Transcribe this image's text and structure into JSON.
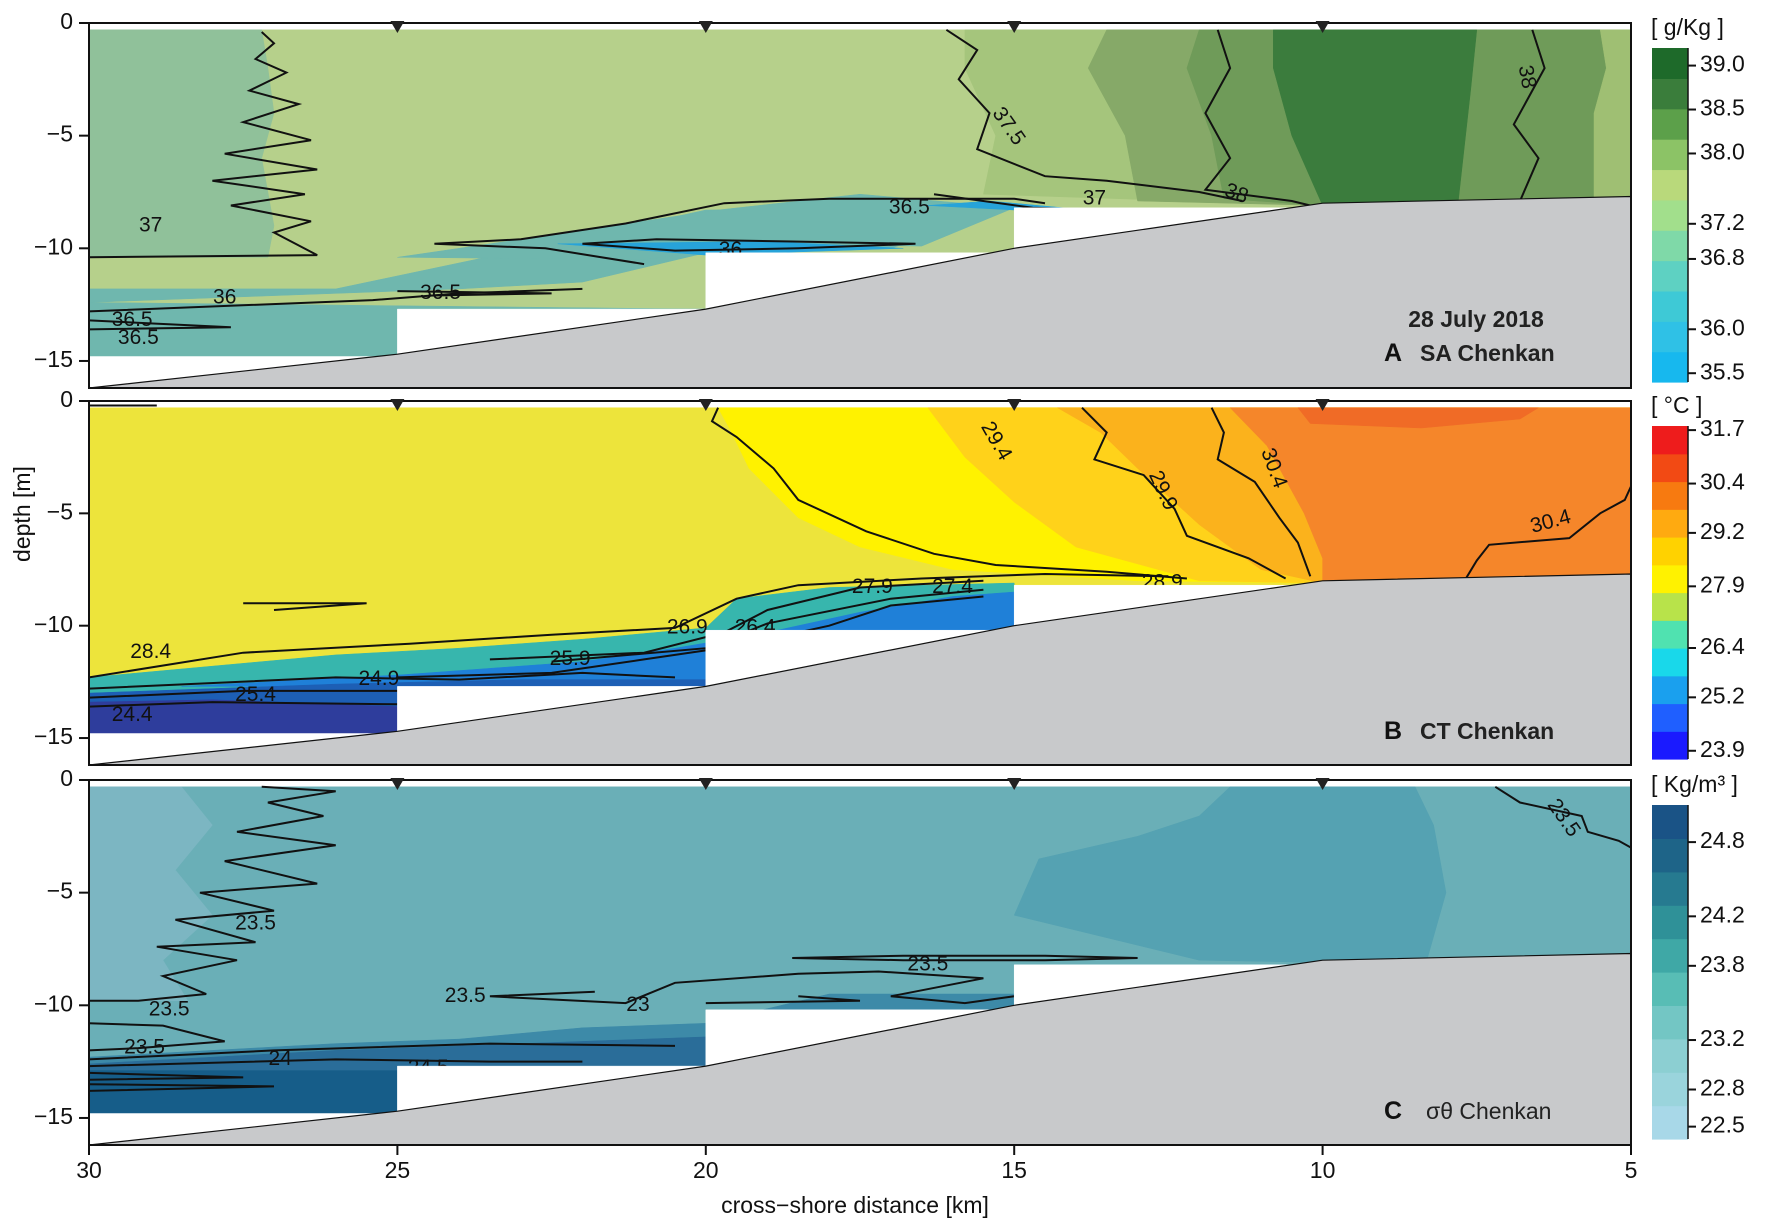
{
  "figure": {
    "date": "28 July 2018",
    "xlabel": "cross−shore distance [km]",
    "ylabel": "depth [m]"
  },
  "chart_data": [
    {
      "type": "heatmap",
      "panel_letter": "A",
      "title": "SA Chenkan",
      "xlim": [
        30,
        5
      ],
      "ylim": [
        -16.2,
        0
      ],
      "x_ticks": [
        "30",
        "25",
        "20",
        "15",
        "10",
        "5"
      ],
      "y_ticks": [
        "0",
        "−5",
        "−10",
        "−15"
      ],
      "colorbar": {
        "title": "[ g/Kg ]",
        "range": [
          35.4,
          39.2
        ],
        "ticks": [
          "39.0",
          "38.5",
          "38.0",
          "37.2",
          "36.8",
          "36.0",
          "35.5"
        ],
        "colors": [
          "#17b8ee",
          "#2fc1e6",
          "#3ec9d6",
          "#5ed1c2",
          "#7fd9a8",
          "#a2df8c",
          "#b9d97b",
          "#8cc366",
          "#5ca04a",
          "#3a7d3b",
          "#1e6a2a"
        ]
      },
      "stations_km": [
        25,
        20,
        15,
        10
      ],
      "contour_labels": [
        "37",
        "36",
        "36.5",
        "36.5",
        "36.5",
        "36",
        "36.5",
        "37",
        "37.5",
        "38",
        "38"
      ],
      "region_colors": {
        "nearshore_band1": "#a5c57c",
        "nearshore_band2": "#86a968",
        "nearshore_band3": "#4f8a48",
        "nearshore_core": "#3b7c3d",
        "nearshore_band5": "#6f9b59",
        "nearshore_band6": "#9fbf73",
        "mid": "#b6d08b",
        "offshore_left": "#90c19a",
        "deep_layer": "#6fb7ae",
        "low_core": "#27a3d9"
      }
    },
    {
      "type": "heatmap",
      "panel_letter": "B",
      "title": "CT Chenkan",
      "xlim": [
        30,
        5
      ],
      "ylim": [
        -16.2,
        0
      ],
      "x_ticks": [
        "30",
        "25",
        "20",
        "15",
        "10",
        "5"
      ],
      "y_ticks": [
        "0",
        "−5",
        "−10",
        "−15"
      ],
      "colorbar": {
        "title": "[ °C ]",
        "range": [
          23.7,
          31.8
        ],
        "ticks": [
          "31.7",
          "30.4",
          "29.2",
          "27.9",
          "26.4",
          "25.2",
          "23.9"
        ],
        "colors": [
          "#1a1aff",
          "#1f5fff",
          "#1aa0ee",
          "#19d8ea",
          "#50e2b0",
          "#b8e34a",
          "#fff200",
          "#ffd200",
          "#ffaa10",
          "#f77a10",
          "#f24a14",
          "#ee1c1c"
        ]
      },
      "stations_km": [
        25,
        20,
        15,
        10
      ],
      "contour_labels": [
        "29.4",
        "29.9",
        "30.4",
        "30.4",
        "28.9",
        "27.9",
        "27.4",
        "26.9",
        "26.4",
        "25.9",
        "24.9",
        "28.4",
        "25.4",
        "24.4"
      ],
      "region_colors": {
        "offshore": "#ede43b",
        "yellow": "#fff200",
        "gold": "#ffd21a",
        "amber": "#fbb21c",
        "orange": "#f5862a",
        "orange_hot": "#f06b26",
        "teal": "#37b6ad",
        "blue": "#1f80d8",
        "deep_blue": "#1d5fb5",
        "navy": "#2e3d9c"
      }
    },
    {
      "type": "heatmap",
      "panel_letter": "C",
      "title": "σθ Chenkan",
      "xlim": [
        30,
        5
      ],
      "ylim": [
        -16.2,
        0
      ],
      "x_ticks": [
        "30",
        "25",
        "20",
        "15",
        "10",
        "5"
      ],
      "y_ticks": [
        "0",
        "−5",
        "−10",
        "−15"
      ],
      "colorbar": {
        "title": "[ Kg/m³ ]",
        "range": [
          22.4,
          25.1
        ],
        "ticks": [
          "24.8",
          "24.2",
          "23.8",
          "23.2",
          "22.8",
          "22.5"
        ],
        "colors": [
          "#a8d8e8",
          "#9ad4dc",
          "#8ccfd2",
          "#73c6c4",
          "#58bdb5",
          "#3fa8a6",
          "#2f9198",
          "#267a90",
          "#1e6488",
          "#1a5386"
        ]
      },
      "stations_km": [
        25,
        20,
        15,
        10
      ],
      "contour_labels": [
        "23.5",
        "23.5",
        "23.5",
        "23.5",
        "23.5",
        "23",
        "23.5",
        "24",
        "24.5"
      ],
      "region_colors": {
        "main": "#6aafb7",
        "offshore": "#7cb6c2",
        "nearshore_core": "#55a2b2",
        "layer": "#3d8aa8",
        "deep": "#2a6d99",
        "deepest": "#165d89"
      }
    }
  ],
  "colors": {
    "seabed": "#c8c9cb",
    "contour": "#111111",
    "frame": "#111111"
  }
}
